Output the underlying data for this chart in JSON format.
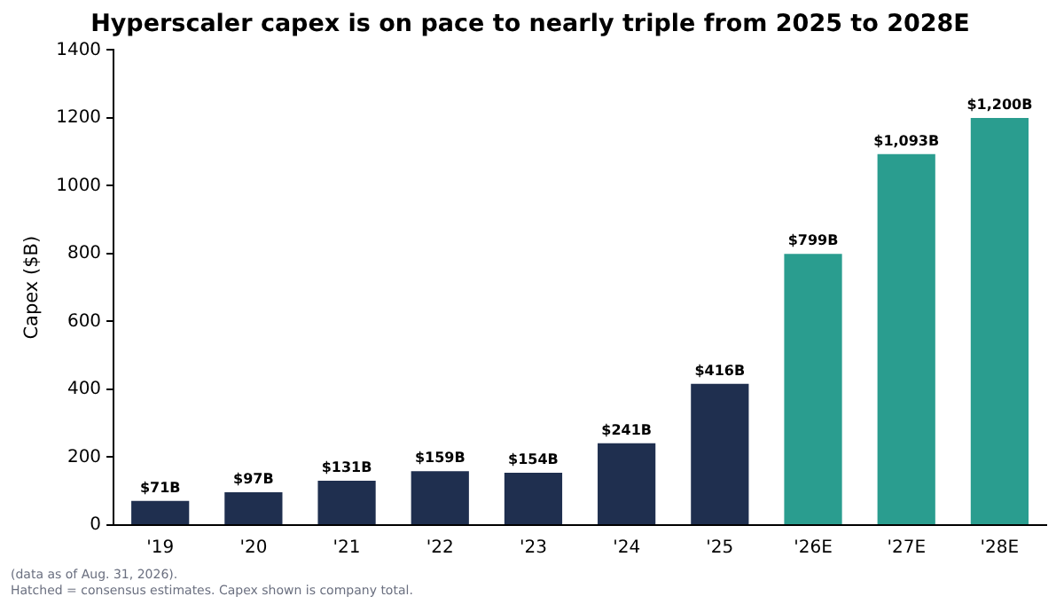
{
  "chart_data": {
    "type": "bar",
    "title": "Hyperscaler capex is on pace to nearly triple from 2025 to 2028E",
    "ylabel": "Capex ($B)",
    "categories": [
      "'19",
      "'20",
      "'21",
      "'22",
      "'23",
      "'24",
      "'25",
      "'26E",
      "'27E",
      "'28E"
    ],
    "values": [
      71,
      97,
      131,
      159,
      154,
      241,
      416,
      799,
      1093,
      1200
    ],
    "colors": [
      "#1f2f4f",
      "#1f2f4f",
      "#1f2f4f",
      "#1f2f4f",
      "#1f2f4f",
      "#1f2f4f",
      "#1f2f4f",
      "#2a9d8f",
      "#2a9d8f",
      "#2a9d8f"
    ],
    "value_labels": [
      "$71B",
      "$97B",
      "$131B",
      "$159B",
      "$154B",
      "$241B",
      "$416B",
      "$799B",
      "$1,093B",
      "$1,200B"
    ],
    "ylim": [
      0,
      1400
    ],
    "yticks": [
      0,
      200,
      400,
      600,
      800,
      1000,
      1200,
      1400
    ],
    "grid": false,
    "legend": false,
    "annotations": [
      "(data as of Aug. 31, 2026).",
      "Hatched = consensus estimates. Capex shown is company total."
    ]
  }
}
